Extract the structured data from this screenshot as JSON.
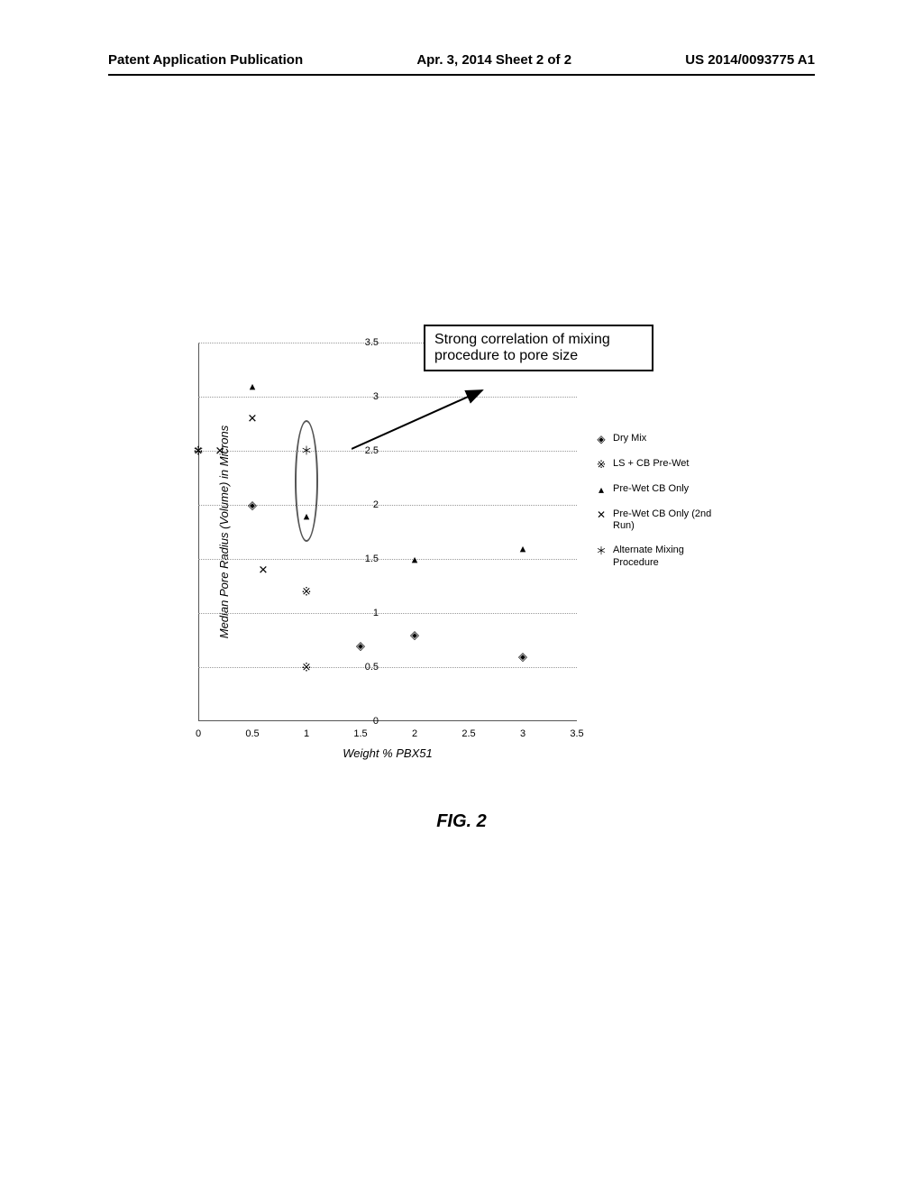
{
  "header": {
    "left": "Patent Application Publication",
    "center": "Apr. 3, 2014  Sheet 2 of 2",
    "right": "US 2014/0093775 A1"
  },
  "chart": {
    "type": "scatter",
    "ylabel": "Median Pore Radius (Volume) in Microns",
    "xlabel": "Weight % PBX51",
    "xlim": [
      0,
      3.5
    ],
    "ylim": [
      0,
      3.5
    ],
    "xtick_step": 0.5,
    "ytick_step": 0.5,
    "background_color": "#ffffff",
    "grid_color": "#999999",
    "callout_text": "Strong correlation of mixing procedure to pore size",
    "series": [
      {
        "name": "Dry Mix",
        "marker": "◈",
        "points": [
          {
            "x": 0.5,
            "y": 2.0
          },
          {
            "x": 1.5,
            "y": 0.7
          },
          {
            "x": 2.0,
            "y": 0.8
          },
          {
            "x": 3.0,
            "y": 0.6
          }
        ]
      },
      {
        "name": "LS + CB Pre-Wet",
        "marker": "※",
        "points": [
          {
            "x": 0.0,
            "y": 2.5
          },
          {
            "x": 1.0,
            "y": 1.2
          },
          {
            "x": 1.0,
            "y": 0.5
          }
        ]
      },
      {
        "name": "Pre-Wet CB Only",
        "marker": "▴",
        "points": [
          {
            "x": 0.5,
            "y": 3.1
          },
          {
            "x": 1.0,
            "y": 1.9
          },
          {
            "x": 2.0,
            "y": 1.5
          },
          {
            "x": 3.0,
            "y": 1.6
          }
        ]
      },
      {
        "name": "Pre-Wet CB Only (2nd Run)",
        "marker": "✕",
        "points": [
          {
            "x": 0.2,
            "y": 2.5
          },
          {
            "x": 0.5,
            "y": 2.8
          },
          {
            "x": 0.6,
            "y": 1.4
          }
        ]
      },
      {
        "name": "Alternate Mixing Procedure",
        "marker": "＊",
        "points": [
          {
            "x": 0.0,
            "y": 2.5
          },
          {
            "x": 1.0,
            "y": 2.5
          }
        ]
      }
    ]
  },
  "figure_label": "FIG. 2"
}
